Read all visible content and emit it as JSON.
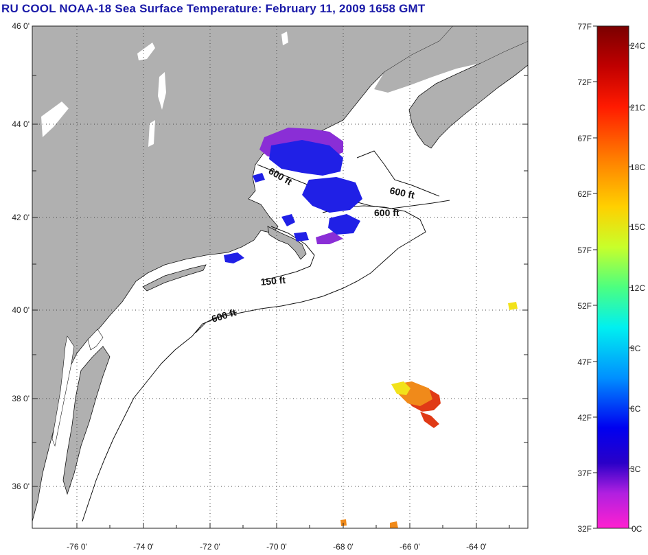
{
  "title": "RU COOL  NOAA-18  Sea Surface Temperature:  February 11, 2009 1658 GMT",
  "lat_ticks": [
    "46 0'",
    "44 0'",
    "42 0'",
    "40 0'",
    "38 0'",
    "36 0'"
  ],
  "lon_ticks": [
    "-76 0'",
    "-74 0'",
    "-72 0'",
    "-70 0'",
    "-68 0'",
    "-66 0'",
    "-64 0'"
  ],
  "colorbar": {
    "fahrenheit": [
      "77F",
      "72F",
      "67F",
      "62F",
      "57F",
      "52F",
      "47F",
      "42F",
      "37F",
      "32F"
    ],
    "celsius": [
      "24C",
      "21C",
      "18C",
      "15C",
      "12C",
      "9C",
      "6C",
      "3C",
      "0C"
    ]
  },
  "contour_labels": [
    "600 ft",
    "600 ft",
    "600 ft",
    "150 ft",
    "600 ft"
  ],
  "colors": {
    "title": "#1a1aa8",
    "land": "#b0b0b0",
    "ocean": "#ffffff",
    "cold_blue": "#2222e0",
    "violet": "#7a33d8",
    "warm_yellow": "#f2e21a",
    "warm_orange": "#f08a1a",
    "warm_red": "#e03a16"
  }
}
